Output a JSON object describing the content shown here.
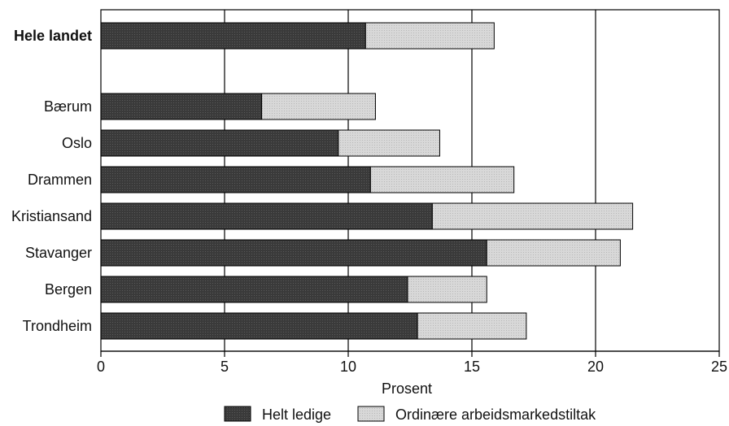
{
  "chart_data": {
    "type": "bar",
    "orientation": "horizontal",
    "stacked": true,
    "categories": [
      "Hele landet",
      "Bærum",
      "Oslo",
      "Drammen",
      "Kristiansand",
      "Stavanger",
      "Bergen",
      "Trondheim"
    ],
    "emphasized_categories": [
      "Hele landet"
    ],
    "series": [
      {
        "name": "Helt ledige",
        "color": "#3a3a3a",
        "values": [
          10.7,
          6.5,
          9.6,
          10.9,
          13.4,
          15.6,
          12.4,
          12.8
        ]
      },
      {
        "name": "Ordinære arbeidsmarkedstiltak",
        "color": "#d4d4d4",
        "values": [
          5.2,
          4.6,
          4.1,
          5.8,
          8.1,
          5.4,
          3.2,
          4.4
        ]
      }
    ],
    "xlabel": "Prosent",
    "ylabel": "",
    "xlim": [
      0,
      25
    ],
    "xticks": [
      0,
      5,
      10,
      15,
      20,
      25
    ],
    "xtick_labels": [
      "0",
      "5",
      "10",
      "15",
      "20",
      "25"
    ],
    "grid": "vertical major lines",
    "legend_position": "bottom"
  }
}
